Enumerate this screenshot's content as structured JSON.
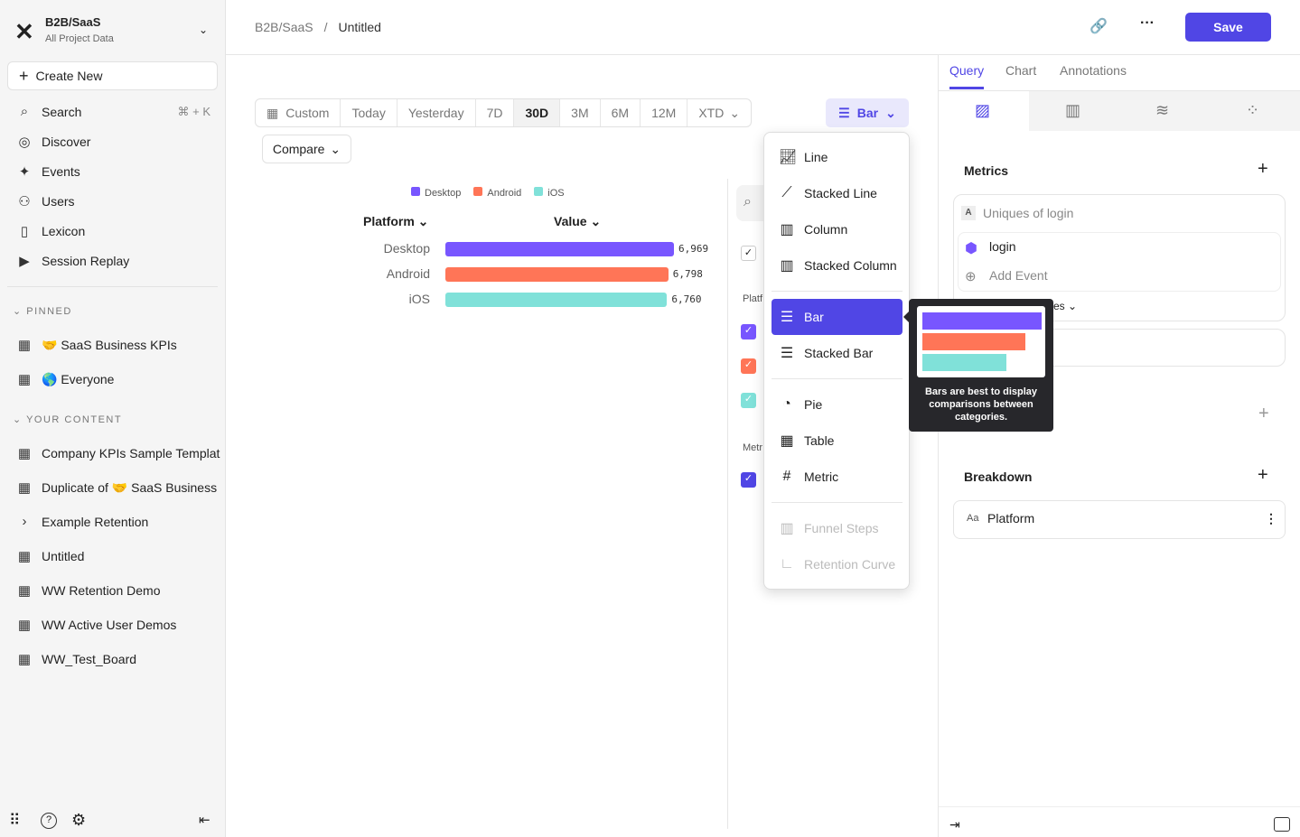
{
  "sidebar": {
    "project": "B2B/SaaS",
    "subtitle": "All Project Data",
    "create": "Create New",
    "nav": [
      {
        "label": "Search",
        "icon": "search-icon",
        "shortcut": "⌘ + K"
      },
      {
        "label": "Discover",
        "icon": "compass-icon"
      },
      {
        "label": "Events",
        "icon": "sparkle-icon"
      },
      {
        "label": "Users",
        "icon": "users-icon"
      },
      {
        "label": "Lexicon",
        "icon": "book-icon"
      },
      {
        "label": "Session Replay",
        "icon": "replay-icon"
      }
    ],
    "pinned_label": "PINNED",
    "pinned": [
      "🤝 SaaS Business KPIs",
      "🌎 Everyone"
    ],
    "content_label": "YOUR CONTENT",
    "content": [
      "Company KPIs Sample Templat",
      "Duplicate of 🤝 SaaS Business",
      "Example Retention",
      "Untitled",
      "WW Retention Demo",
      "WW Active User Demos",
      "WW_Test_Board"
    ]
  },
  "header": {
    "breadcrumb": [
      "B2B/SaaS",
      "Untitled"
    ],
    "save": "Save"
  },
  "toolbar": {
    "ranges": [
      "Custom",
      "Today",
      "Yesterday",
      "7D",
      "30D",
      "3M",
      "6M",
      "12M",
      "XTD"
    ],
    "selected": "30D",
    "compare": "Compare",
    "chart_type": "Bar"
  },
  "chart_data": {
    "type": "bar",
    "orientation": "horizontal",
    "categories": [
      "Desktop",
      "Android",
      "iOS"
    ],
    "values": [
      6969,
      6798,
      6760
    ],
    "value_labels": [
      "6,969",
      "6,798",
      "6,760"
    ],
    "colors": [
      "#7856ff",
      "#ff7557",
      "#80e1d9"
    ],
    "legend": [
      "Desktop",
      "Android",
      "iOS"
    ],
    "col_headers": [
      "Platform",
      "Value"
    ]
  },
  "partial": {
    "platform": "Platf",
    "metrics": "Metr"
  },
  "menu": {
    "items": [
      {
        "label": "Line",
        "icon": "line-chart-icon"
      },
      {
        "label": "Stacked Line",
        "icon": "stacked-line-icon"
      },
      {
        "label": "Column",
        "icon": "column-chart-icon"
      },
      {
        "label": "Stacked Column",
        "icon": "stacked-column-icon"
      },
      {
        "label": "Bar",
        "icon": "bar-chart-icon",
        "selected": true
      },
      {
        "label": "Stacked Bar",
        "icon": "stacked-bar-icon"
      },
      {
        "label": "Pie",
        "icon": "pie-chart-icon"
      },
      {
        "label": "Table",
        "icon": "table-icon"
      },
      {
        "label": "Metric",
        "icon": "hash-icon"
      },
      {
        "label": "Funnel Steps",
        "icon": "funnel-icon",
        "disabled": true
      },
      {
        "label": "Retention Curve",
        "icon": "retention-icon",
        "disabled": true
      }
    ],
    "tooltip": "Bars are best to display comparisons between categories."
  },
  "panel": {
    "tabs": [
      "Query",
      "Chart",
      "Annotations"
    ],
    "active": "Query",
    "metrics": "Metrics",
    "metric_letter": "A",
    "metric_name": "Uniques of login",
    "event": "login",
    "add_event": "Add Event",
    "partial_text": "es",
    "breakdown": "Breakdown",
    "breakdown_type": "Aa",
    "breakdown_item": "Platform"
  }
}
